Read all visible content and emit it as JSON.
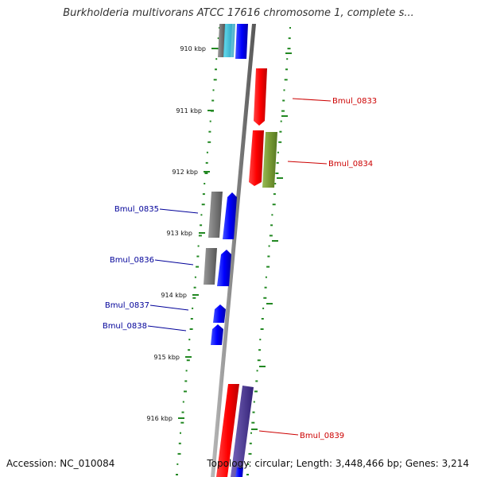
{
  "title": "Burkholderia multivorans ATCC 17616 chromosome 1, complete s...",
  "footer": {
    "accession": "Accession: NC_010084",
    "topology": "Topology: circular; Length: 3,448,466 bp; Genes: 3,214"
  },
  "ticks": [
    "910 kbp",
    "911 kbp",
    "912 kbp",
    "913 kbp",
    "914 kbp",
    "915 kbp",
    "916 kbp"
  ],
  "gene_labels": [
    {
      "id": "Bmul_0833",
      "color": "#cc0000"
    },
    {
      "id": "Bmul_0834",
      "color": "#cc0000"
    },
    {
      "id": "Bmul_0835",
      "color": "#000099"
    },
    {
      "id": "Bmul_0836",
      "color": "#000099"
    },
    {
      "id": "Bmul_0837",
      "color": "#000099"
    },
    {
      "id": "Bmul_0838",
      "color": "#000099"
    },
    {
      "id": "Bmul_0839",
      "color": "#cc0000"
    }
  ],
  "colors": {
    "backbone": "#888888",
    "ticks": "#228822",
    "forward_gene": "#ff0000",
    "reverse_gene": "#0000ff",
    "gray_gene": "#777777",
    "olive_gene": "#779933",
    "cyan_gene": "#33bbcc",
    "slate_gene": "#554499"
  }
}
